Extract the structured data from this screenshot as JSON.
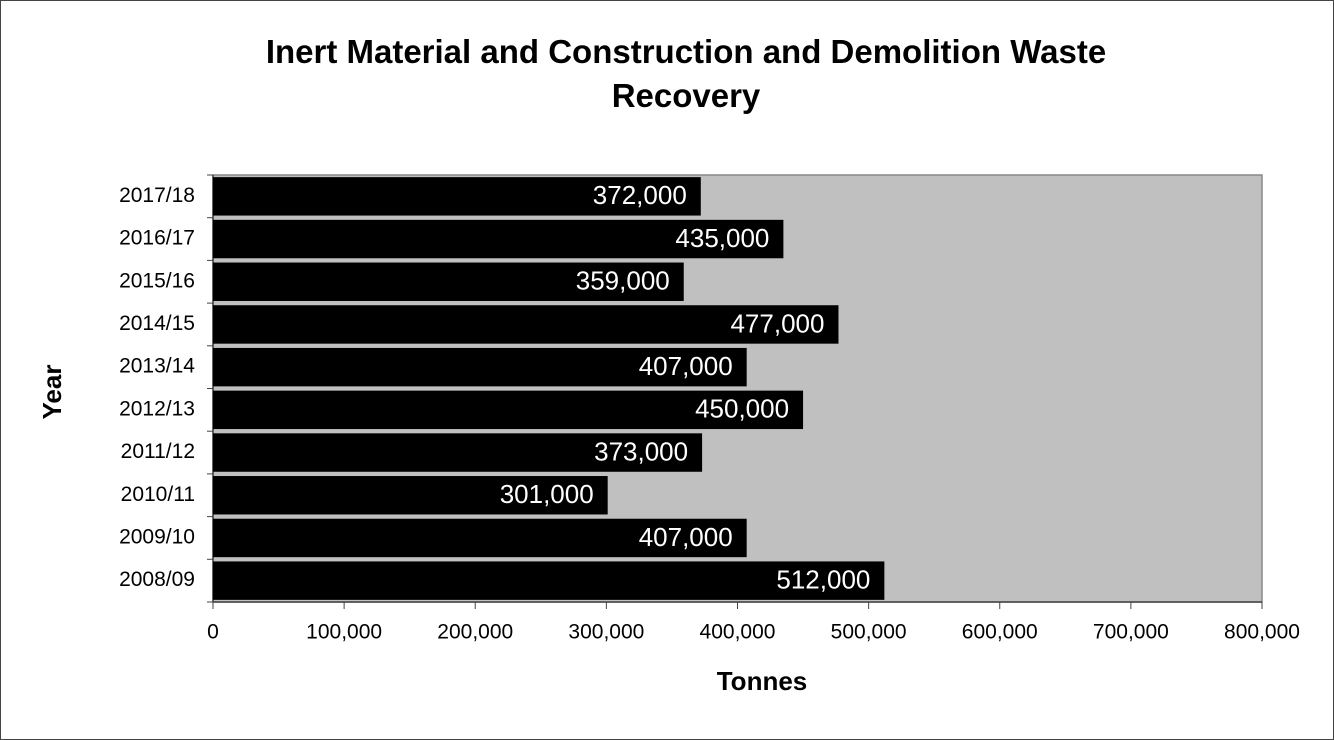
{
  "chart_data": {
    "type": "bar",
    "orientation": "horizontal",
    "title": "Inert Material and Construction and Demolition Waste Recovery",
    "x_label": "Tonnes",
    "y_label": "Year",
    "categories": [
      "2008/09",
      "2009/10",
      "2010/11",
      "2011/12",
      "2012/13",
      "2013/14",
      "2014/15",
      "2015/16",
      "2016/17",
      "2017/18"
    ],
    "values": [
      512000,
      407000,
      301000,
      373000,
      450000,
      407000,
      477000,
      359000,
      435000,
      372000
    ],
    "value_labels": [
      "512,000",
      "407,000",
      "301,000",
      "373,000",
      "450,000",
      "407,000",
      "477,000",
      "359,000",
      "435,000",
      "372,000"
    ],
    "color": "#000000",
    "plot_background": "#c0c0c0",
    "xlim": [
      0,
      800000
    ],
    "xticks": [
      0,
      {
        "value": 100000,
        "label": "100,000"
      },
      {
        "value": 200000,
        "label": "200,000"
      },
      {
        "value": 300000,
        "label": "300,000"
      },
      {
        "value": 400000,
        "label": "400,000"
      },
      {
        "value": 500000,
        "label": "500,000"
      },
      {
        "value": 600000,
        "label": "600,000"
      },
      {
        "value": 700000,
        "label": "700,000"
      },
      {
        "value": 800000,
        "label": "800,000"
      }
    ],
    "grid": false
  }
}
